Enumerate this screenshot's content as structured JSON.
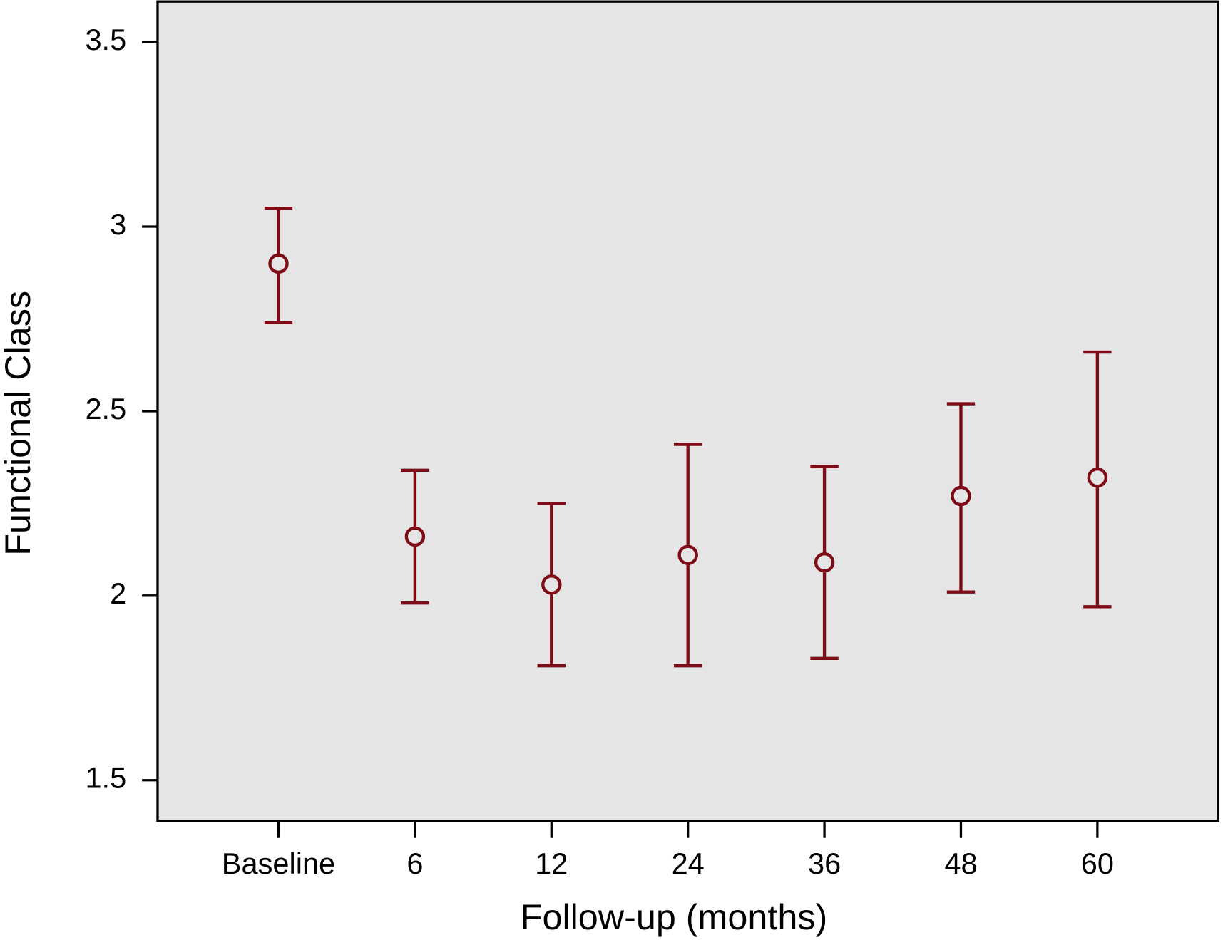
{
  "chart_data": {
    "type": "errorbar",
    "x_label": "Follow-up (months)",
    "y_label": "Functional Class",
    "categories": [
      "Baseline",
      "6",
      "12",
      "24",
      "36",
      "48",
      "60"
    ],
    "values": [
      2.9,
      2.16,
      2.03,
      2.11,
      2.09,
      2.27,
      2.32
    ],
    "lower": [
      2.74,
      1.98,
      1.81,
      1.81,
      1.83,
      2.01,
      1.97
    ],
    "upper": [
      3.05,
      2.34,
      2.25,
      2.41,
      2.35,
      2.52,
      2.66
    ],
    "color": "#7d0c16",
    "ylim": [
      1.39,
      3.61
    ],
    "yticks": [
      1.5,
      2,
      2.5,
      3,
      3.5
    ],
    "grid": false
  }
}
